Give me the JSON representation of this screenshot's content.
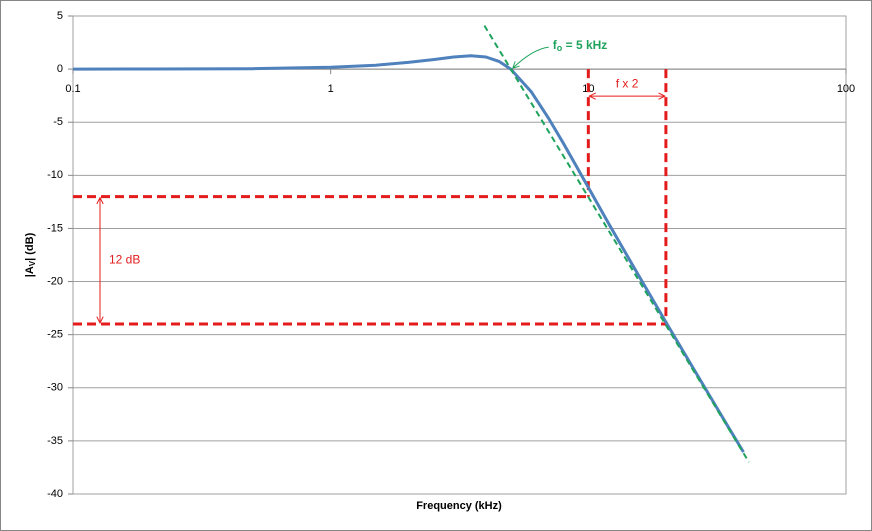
{
  "chart_data": {
    "type": "line",
    "xscale": "log",
    "xlabel": "Frequency (kHz)",
    "ylabel": {
      "main": "|A",
      "sub": "V",
      "rest": "| (dB)"
    },
    "xlim": [
      0.1,
      100
    ],
    "xticks": [
      0.1,
      1,
      10,
      100
    ],
    "ylim": [
      -40,
      5
    ],
    "yticks": [
      5,
      0,
      -5,
      -10,
      -15,
      -20,
      -25,
      -30,
      -35,
      -40
    ],
    "grid": true,
    "series": [
      {
        "color": "#4f81bd",
        "dashed": false,
        "x": [
          0.1,
          0.2,
          0.5,
          1,
          1.5,
          2,
          2.5,
          3,
          3.5,
          4,
          4.5,
          5,
          6,
          7,
          8,
          10,
          12,
          15,
          20,
          25,
          30,
          35,
          40
        ],
        "values": [
          0,
          0.01,
          0.04,
          0.17,
          0.37,
          0.63,
          0.9,
          1.14,
          1.25,
          1.14,
          0.73,
          0,
          -2.13,
          -4.6,
          -6.98,
          -11.14,
          -14.54,
          -18.63,
          -23.82,
          -27.79,
          -31.01,
          -33.72,
          -36.06
        ]
      },
      {
        "color": "#1fa35c",
        "dashed": true,
        "x": [
          3.95,
          42
        ],
        "values": [
          4.1,
          -37
        ]
      }
    ],
    "annotation": {
      "color": "#1fa35c",
      "x": 5,
      "y": 0,
      "text": {
        "main": "f",
        "sub": "o",
        "rest": " = 5 kHz"
      }
    },
    "markers": {
      "color": "#e31b1b",
      "points": [
        {
          "x": 10,
          "y": -12
        },
        {
          "x": 20,
          "y": -24
        }
      ],
      "gap_label": "12 dB",
      "ratio_label": "f x 2"
    }
  }
}
